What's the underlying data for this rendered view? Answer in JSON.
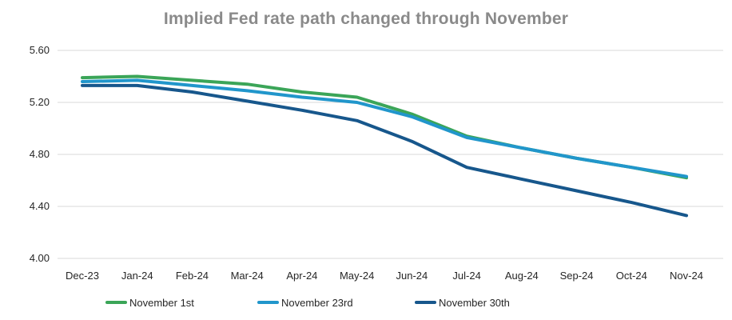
{
  "title": "Implied Fed rate path changed through November",
  "colors": {
    "title_text": "#8a8a8a",
    "axis_text": "#262626",
    "gridline": "#d9d9d9",
    "background": "#ffffff",
    "series_green": "#3ba558",
    "series_light_blue": "#2196cb",
    "series_dark_blue": "#17578c"
  },
  "chart_data": {
    "type": "line",
    "title": "Implied Fed rate path changed through November",
    "categories": [
      "Dec-23",
      "Jan-24",
      "Feb-24",
      "Mar-24",
      "Apr-24",
      "May-24",
      "Jun-24",
      "Jul-24",
      "Aug-24",
      "Sep-24",
      "Oct-24",
      "Nov-24"
    ],
    "series": [
      {
        "name": "November 1st",
        "color": "#3ba558",
        "values": [
          5.39,
          5.4,
          5.37,
          5.34,
          5.28,
          5.24,
          5.11,
          4.94,
          4.85,
          4.77,
          4.7,
          4.62
        ]
      },
      {
        "name": "November 23rd",
        "color": "#2196cb",
        "values": [
          5.36,
          5.37,
          5.33,
          5.29,
          5.24,
          5.2,
          5.09,
          4.93,
          4.85,
          4.77,
          4.7,
          4.63
        ]
      },
      {
        "name": "November 30th",
        "color": "#17578c",
        "values": [
          5.33,
          5.33,
          5.28,
          5.21,
          5.14,
          5.06,
          4.9,
          4.7,
          4.61,
          4.52,
          4.43,
          4.33
        ]
      }
    ],
    "xlabel": "",
    "ylabel": "",
    "ylim": [
      4.0,
      5.6
    ],
    "yticks": [
      5.6,
      5.2,
      4.8,
      4.4,
      4.0
    ],
    "ytick_labels": [
      "5.60",
      "5.20",
      "4.80",
      "4.40",
      "4.00"
    ],
    "grid": "horizontal",
    "legend_position": "bottom"
  }
}
